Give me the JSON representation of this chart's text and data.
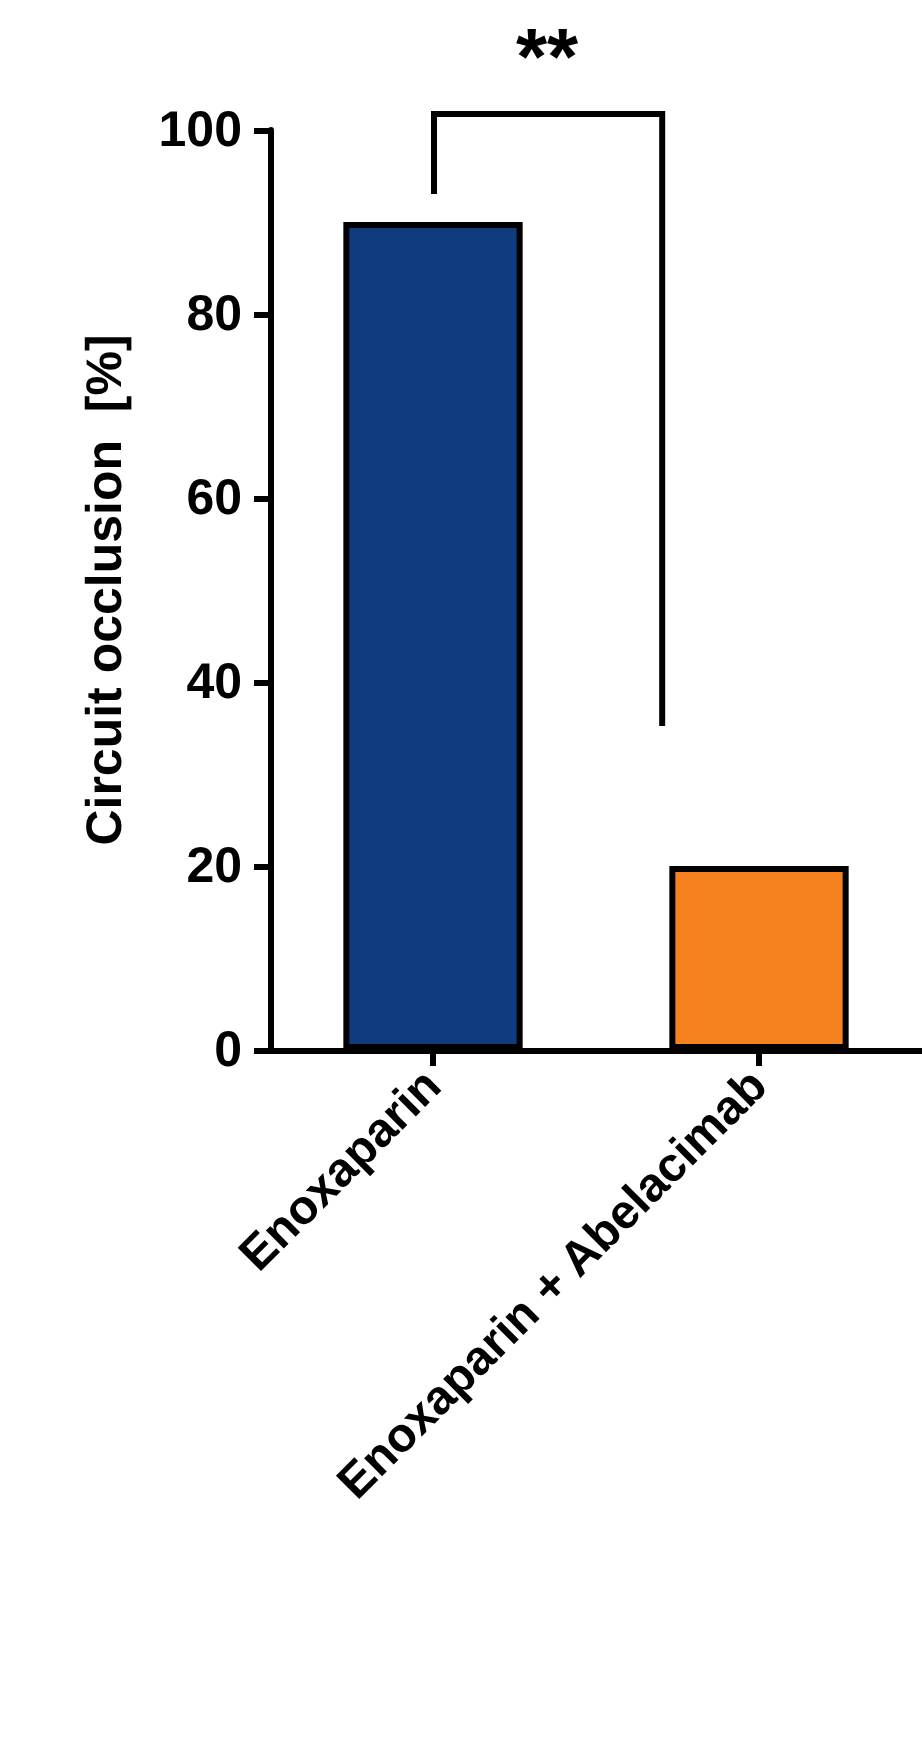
{
  "chart_data": {
    "type": "bar",
    "ylabel": "Circuit occlusion  [%]",
    "categories": [
      "Enoxaparin",
      "Enoxaparin + Abelacimab"
    ],
    "values": [
      90,
      20
    ],
    "colors": [
      "#0f3c7e",
      "#f5821f"
    ],
    "ylim": [
      0,
      100
    ],
    "yticks": [
      0,
      20,
      40,
      60,
      80,
      100
    ],
    "grid": false,
    "annotations": [
      "**"
    ]
  }
}
